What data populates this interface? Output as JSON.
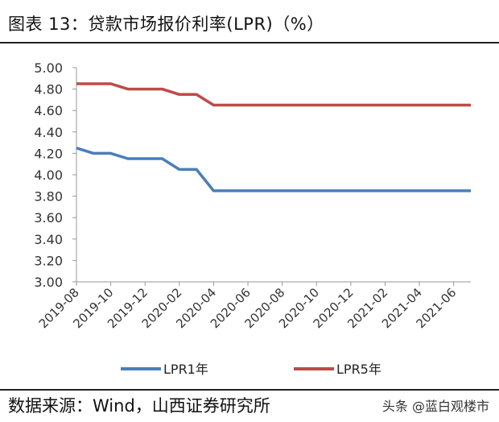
{
  "header": {
    "title": "图表 13：贷款市场报价利率(LPR)（%）"
  },
  "footer": {
    "source": "数据来源：Wind，山西证券研究所",
    "watermark": "头条 @蓝白观楼市"
  },
  "chart_data": {
    "type": "line",
    "title": "图表 13：贷款市场报价利率(LPR)（%）",
    "xlabel": "",
    "ylabel": "",
    "x": [
      "2019-08",
      "2019-09",
      "2019-10",
      "2019-11",
      "2019-12",
      "2020-01",
      "2020-02",
      "2020-03",
      "2020-04",
      "2020-05",
      "2020-06",
      "2020-07",
      "2020-08",
      "2020-09",
      "2020-10",
      "2020-11",
      "2020-12",
      "2021-01",
      "2021-02",
      "2021-03",
      "2021-04",
      "2021-05",
      "2021-06",
      "2021-07"
    ],
    "x_tick_labels": [
      "2019-08",
      "2019-10",
      "2019-12",
      "2020-02",
      "2020-04",
      "2020-06",
      "2020-08",
      "2020-10",
      "2020-12",
      "2021-02",
      "2021-04",
      "2021-06"
    ],
    "series": [
      {
        "name": "LPR1年",
        "color": "#4a7ebb",
        "values": [
          4.25,
          4.2,
          4.2,
          4.15,
          4.15,
          4.15,
          4.05,
          4.05,
          3.85,
          3.85,
          3.85,
          3.85,
          3.85,
          3.85,
          3.85,
          3.85,
          3.85,
          3.85,
          3.85,
          3.85,
          3.85,
          3.85,
          3.85,
          3.85
        ]
      },
      {
        "name": "LPR5年",
        "color": "#be4b48",
        "values": [
          4.85,
          4.85,
          4.85,
          4.8,
          4.8,
          4.8,
          4.75,
          4.75,
          4.65,
          4.65,
          4.65,
          4.65,
          4.65,
          4.65,
          4.65,
          4.65,
          4.65,
          4.65,
          4.65,
          4.65,
          4.65,
          4.65,
          4.65,
          4.65
        ]
      }
    ],
    "ylim": [
      3.0,
      5.0
    ],
    "y_ticks": [
      "3.00",
      "3.20",
      "3.40",
      "3.60",
      "3.80",
      "4.00",
      "4.20",
      "4.40",
      "4.60",
      "4.80",
      "5.00"
    ],
    "grid": false,
    "legend_position": "bottom"
  }
}
